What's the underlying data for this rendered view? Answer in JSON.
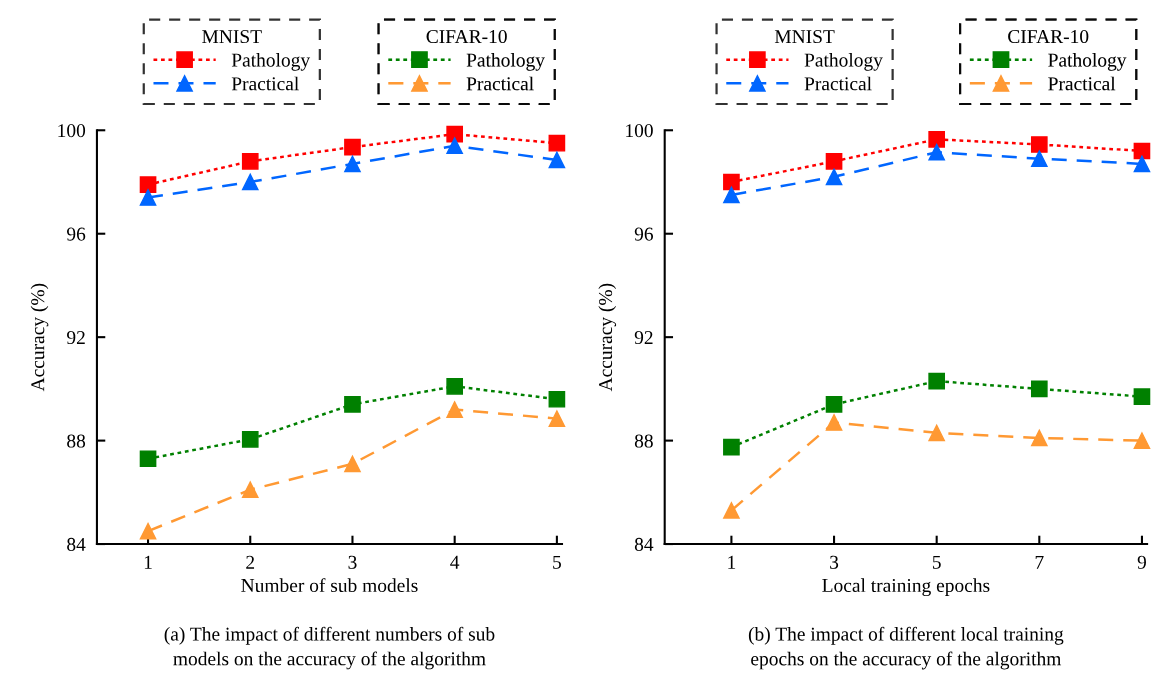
{
  "chart_data": [
    {
      "type": "line",
      "xlabel": "Number of sub models",
      "ylabel": "Accuracy (%)",
      "legend_title": [
        "MNIST",
        "CIFAR-10"
      ],
      "legend": "top",
      "grid": false,
      "x": [
        1,
        2,
        3,
        4,
        5
      ],
      "xlim": [
        0.5,
        5.05
      ],
      "xticks": [
        1,
        2,
        3,
        4,
        5
      ],
      "ylim": [
        84,
        100
      ],
      "yticks": [
        84,
        88,
        92,
        96,
        100
      ],
      "annotations": [
        "(a) The impact of different numbers of sub\nmodels on the accuracy of the algorithm"
      ],
      "series": [
        {
          "name": "Pathology",
          "color": "#ff0000",
          "marker": "square",
          "line_style": "dotted",
          "values": [
            97.9,
            98.8,
            99.35,
            99.85,
            99.5
          ]
        },
        {
          "name": "Practical",
          "color": "#0066ff",
          "marker": "triangle",
          "line_style": "dashed",
          "values": [
            97.4,
            98.0,
            98.7,
            99.4,
            98.85
          ]
        },
        {
          "name": "Pathology",
          "color": "#008000",
          "marker": "square",
          "line_style": "dotted",
          "values": [
            87.3,
            88.05,
            89.4,
            90.1,
            89.6
          ]
        },
        {
          "name": "Practical",
          "color": "#ff9933",
          "marker": "triangle",
          "line_style": "dashed",
          "values": [
            84.5,
            86.1,
            87.1,
            89.2,
            88.85
          ]
        }
      ]
    },
    {
      "type": "line",
      "xlabel": "Local training epochs",
      "ylabel": "Accuracy (%)",
      "legend_title": [
        "MNIST",
        "CIFAR-10"
      ],
      "legend": "top",
      "grid": false,
      "x": [
        1,
        3,
        5,
        7,
        9
      ],
      "xlim": [
        -0.3,
        9.1
      ],
      "xticks": [
        1,
        3,
        5,
        7,
        9
      ],
      "ylim": [
        84,
        100
      ],
      "yticks": [
        84,
        88,
        92,
        96,
        100
      ],
      "annotations": [
        "(b) The impact of different local training\nepochs on the accuracy of the algorithm"
      ],
      "series": [
        {
          "name": "Pathology",
          "color": "#ff0000",
          "marker": "square",
          "line_style": "dotted",
          "values": [
            98.0,
            98.8,
            99.65,
            99.45,
            99.2
          ]
        },
        {
          "name": "Practical",
          "color": "#0066ff",
          "marker": "triangle",
          "line_style": "dashed",
          "values": [
            97.5,
            98.2,
            99.15,
            98.9,
            98.7
          ]
        },
        {
          "name": "Pathology",
          "color": "#008000",
          "marker": "square",
          "line_style": "dotted",
          "values": [
            87.75,
            89.4,
            90.3,
            90.0,
            89.7
          ]
        },
        {
          "name": "Practical",
          "color": "#ff9933",
          "marker": "triangle",
          "line_style": "dashed",
          "values": [
            85.3,
            88.7,
            88.3,
            88.1,
            88.0
          ]
        }
      ]
    }
  ]
}
